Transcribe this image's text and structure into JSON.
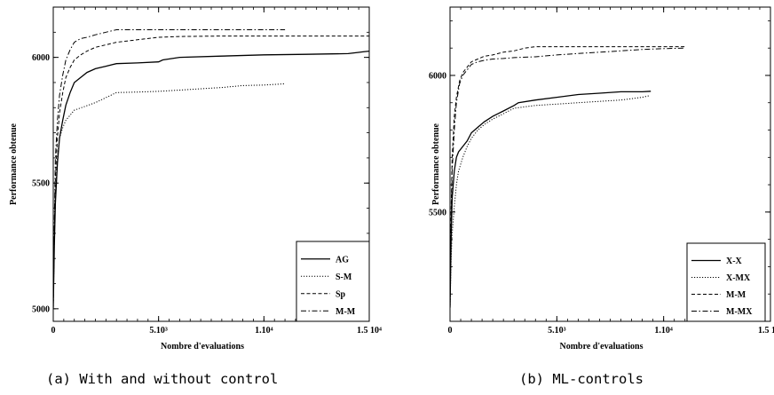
{
  "captions": {
    "a": "(a) With and without control",
    "b": "(b) ML-controls"
  },
  "chart_data": [
    {
      "id": "a",
      "type": "line",
      "title": "",
      "xlabel": "Nombre d'evaluations",
      "ylabel": "Performance obtenue",
      "xlim": [
        0,
        15000
      ],
      "ylim": [
        4950,
        6200
      ],
      "xticks": [
        {
          "value": 5000,
          "label": "5.10³"
        },
        {
          "value": 10000,
          "label": "1.10⁴"
        },
        {
          "value": 15000,
          "label": "1.5 10⁴"
        }
      ],
      "yticks": [
        {
          "value": 5000,
          "label": "5000"
        },
        {
          "value": 5500,
          "label": "5500"
        },
        {
          "value": 6000,
          "label": "6000"
        }
      ],
      "legend_position": "bottom-right",
      "series": [
        {
          "name": "AG",
          "dash": "solid",
          "x": [
            0,
            50,
            100,
            200,
            300,
            450,
            600,
            800,
            1000,
            1300,
            1600,
            2000,
            2500,
            3000,
            4000,
            5000,
            5200,
            6000,
            8000,
            10000,
            12000,
            14000,
            14500,
            14700,
            15000
          ],
          "y": [
            5000,
            5250,
            5420,
            5580,
            5680,
            5750,
            5810,
            5860,
            5900,
            5920,
            5940,
            5955,
            5965,
            5975,
            5978,
            5982,
            5990,
            6000,
            6005,
            6010,
            6012,
            6015,
            6020,
            6022,
            6025
          ]
        },
        {
          "name": "S-M",
          "dash": "dotted",
          "x": [
            0,
            50,
            100,
            200,
            300,
            450,
            600,
            800,
            1000,
            1500,
            2000,
            2500,
            3000,
            4000,
            5000,
            6000,
            7000,
            8000,
            9000,
            10000,
            11000
          ],
          "y": [
            5000,
            5280,
            5450,
            5600,
            5680,
            5720,
            5750,
            5770,
            5790,
            5805,
            5820,
            5840,
            5860,
            5862,
            5865,
            5870,
            5875,
            5880,
            5888,
            5890,
            5895
          ]
        },
        {
          "name": "Sp",
          "dash": "dashed",
          "x": [
            0,
            50,
            100,
            200,
            300,
            450,
            600,
            800,
            1000,
            1300,
            1600,
            2000,
            2500,
            3000,
            3500,
            4000,
            5000,
            6000,
            8000,
            10000,
            12000,
            15000
          ],
          "y": [
            5000,
            5300,
            5520,
            5680,
            5780,
            5860,
            5920,
            5960,
            5990,
            6010,
            6025,
            6040,
            6050,
            6060,
            6065,
            6070,
            6080,
            6083,
            6085,
            6085,
            6085,
            6085
          ]
        },
        {
          "name": "M-M",
          "dash": "dashdot",
          "x": [
            0,
            50,
            100,
            200,
            300,
            450,
            600,
            800,
            1000,
            1300,
            1600,
            2000,
            2500,
            3000,
            3500,
            4000,
            5000,
            6000,
            8000,
            10000,
            11000
          ],
          "y": [
            5000,
            5350,
            5600,
            5750,
            5850,
            5930,
            5990,
            6030,
            6060,
            6075,
            6080,
            6090,
            6100,
            6110,
            6110,
            6110,
            6110,
            6110,
            6110,
            6110,
            6110
          ]
        }
      ]
    },
    {
      "id": "b",
      "type": "line",
      "title": "",
      "xlabel": "Nombre d'evaluations",
      "ylabel": "Performance obtenue",
      "xlim": [
        0,
        15000
      ],
      "ylim": [
        5100,
        6250
      ],
      "xticks": [
        {
          "value": 5000,
          "label": "5.10³"
        },
        {
          "value": 10000,
          "label": "1.10⁴"
        },
        {
          "value": 15000,
          "label": "1.5 10⁴"
        }
      ],
      "yticks": [
        {
          "value": 5500,
          "label": "5500"
        },
        {
          "value": 6000,
          "label": "6000"
        }
      ],
      "legend_position": "bottom-right",
      "series": [
        {
          "name": "X-X",
          "dash": "solid",
          "x": [
            0,
            50,
            100,
            200,
            300,
            400,
            600,
            800,
            1000,
            1300,
            1600,
            2000,
            2500,
            3000,
            3200,
            4000,
            5000,
            6000,
            7000,
            8000,
            9000,
            9400
          ],
          "y": [
            5150,
            5400,
            5550,
            5650,
            5700,
            5720,
            5740,
            5760,
            5790,
            5810,
            5830,
            5850,
            5870,
            5890,
            5900,
            5910,
            5920,
            5930,
            5935,
            5940,
            5940,
            5942
          ]
        },
        {
          "name": "X-MX",
          "dash": "dotted",
          "x": [
            0,
            50,
            100,
            200,
            300,
            400,
            600,
            800,
            1000,
            1300,
            1600,
            2000,
            2500,
            3000,
            4000,
            5000,
            6000,
            7000,
            8000,
            9000,
            9300
          ],
          "y": [
            5150,
            5320,
            5420,
            5520,
            5600,
            5650,
            5700,
            5740,
            5770,
            5800,
            5820,
            5840,
            5860,
            5880,
            5890,
            5895,
            5900,
            5905,
            5910,
            5920,
            5925
          ]
        },
        {
          "name": "M-M",
          "dash": "dashed",
          "x": [
            0,
            50,
            100,
            200,
            300,
            450,
            600,
            800,
            1000,
            1300,
            1600,
            2000,
            2500,
            3000,
            3500,
            4000,
            5000,
            6000,
            8000,
            10000,
            11000
          ],
          "y": [
            5150,
            5500,
            5700,
            5850,
            5920,
            5980,
            6010,
            6030,
            6050,
            6060,
            6070,
            6075,
            6085,
            6090,
            6100,
            6105,
            6105,
            6105,
            6105,
            6105,
            6105
          ]
        },
        {
          "name": "M-MX",
          "dash": "dashdot",
          "x": [
            0,
            50,
            100,
            200,
            300,
            450,
            600,
            800,
            1000,
            1300,
            1600,
            2000,
            2500,
            3000,
            4000,
            5000,
            6000,
            7000,
            8000,
            9000,
            10000,
            11000
          ],
          "y": [
            5150,
            5450,
            5650,
            5800,
            5900,
            5970,
            6000,
            6020,
            6040,
            6050,
            6055,
            6060,
            6062,
            6065,
            6068,
            6075,
            6080,
            6085,
            6090,
            6095,
            6098,
            6100
          ]
        }
      ]
    }
  ]
}
